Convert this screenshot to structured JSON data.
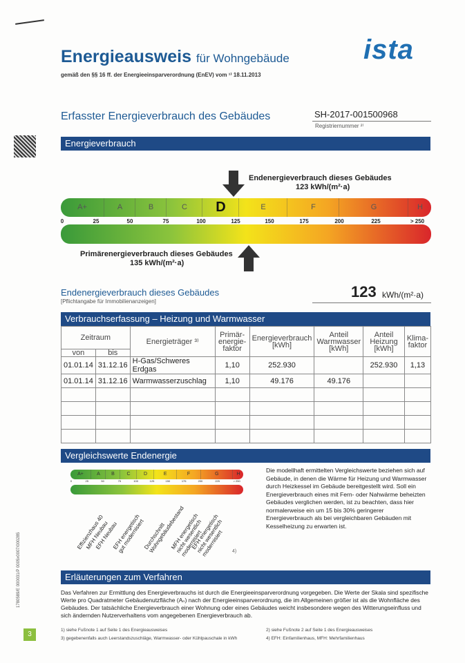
{
  "header": {
    "title": "Energieausweis",
    "title_suffix": "für Wohngebäude",
    "subtitle": "gemäß den §§ 16 ff. der Energieeinsparverordnung (EnEV) vom ¹⁾ 18.11.2013",
    "logo": "ista"
  },
  "section": {
    "title": "Erfasster Energieverbrauch des Gebäudes",
    "registration_number": "SH-2017-001500968",
    "registration_label": "Registriernummer ²⁾"
  },
  "consumption": {
    "bar_title": "Energieverbrauch",
    "final_label": "Endenergieverbrauch dieses Gebäudes",
    "final_value": "123 kWh/(m²·a)",
    "primary_label": "Primärenergieverbrauch dieses Gebäudes",
    "primary_value": "135 kWh/(m²·a)",
    "classes": [
      "A+",
      "A",
      "B",
      "C",
      "D",
      "E",
      "F",
      "G",
      "H"
    ],
    "ticks": [
      "0",
      "25",
      "50",
      "75",
      "100",
      "125",
      "150",
      "175",
      "200",
      "225",
      "> 250"
    ],
    "summary_label": "Endenergieverbrauch dieses Gebäudes",
    "summary_note": "[Pflichtangabe für Immobilienanzeigen]",
    "summary_value": "123",
    "summary_unit": "kWh/(m²·a)"
  },
  "table": {
    "title": "Verbrauchserfassung – Heizung und Warmwasser",
    "headers": {
      "period": "Zeitraum",
      "from": "von",
      "to": "bis",
      "carrier": "Energieträger ³⁾",
      "primary_factor": "Primär-energie-faktor",
      "consumption": "Energieverbrauch [kWh]",
      "hot_water": "Anteil Warmwasser [kWh]",
      "heating": "Anteil Heizung [kWh]",
      "climate_factor": "Klima-faktor"
    },
    "rows": [
      [
        "01.01.14",
        "31.12.16",
        "H-Gas/Schweres Erdgas",
        "1,10",
        "252.930",
        null,
        "252.930",
        "1,13"
      ],
      [
        "01.01.14",
        "31.12.16",
        "Warmwasserzuschlag",
        "1,10",
        "49.176",
        "49.176",
        null,
        null
      ]
    ]
  },
  "comparison": {
    "title": "Vergleichswerte Endenergie",
    "references": [
      "Effizienzhaus 40",
      "MFH Neubau",
      "EFH Neubau",
      "EFH energetisch gut modernisiert",
      "Durchschnitt Wohngebäudebestand",
      "MFH energetisch nicht wesentlich modernisiert",
      "EFH energetisch nicht wesentlich modernisiert"
    ],
    "footnote_mark": "4)",
    "text": "Die modellhaft ermittelten Vergleichswerte beziehen sich auf Gebäude, in denen die Wärme für Heizung und Warmwasser durch Heizkessel im Gebäude bereitgestellt wird. Soll ein Energieverbrauch eines mit Fern- oder Nahwärme beheizten Gebäudes verglichen werden, ist zu beachten, dass hier normalerweise ein um 15 bis 30% geringerer Energieverbrauch als bei vergleichbaren Gebäuden mit Kesselheizung zu erwarten ist."
  },
  "explanation": {
    "title": "Erläuterungen zum Verfahren",
    "text": "Das Verfahren zur Ermittlung des Energieverbrauchs ist durch die Energieeinsparverordnung vorgegeben. Die Werte der Skala sind spezifische Werte pro Quadratmeter Gebäudenutzfläche (Aₙ) nach der Energieeinsparverordnung, die im Allgemeinen größer ist als die Wohnfläche des Gebäudes. Der tatsächliche Energieverbrauch einer Wohnung oder eines Gebäudes weicht insbesondere wegen des Witterungseinfluss und sich ändernden Nutzerverhaltens vom angegebenen Energieverbrauch ab."
  },
  "footnotes": [
    "1) siehe Fußnote 1 auf Seite 1 des Energieausweises",
    "2) siehe Fußnote 2 auf Seite 1 des Energieausweises",
    "3) gegebenenfalls auch Leerstandszuschläge, Warmwasser- oder Kühlpauschale in kWh",
    "4) EFH: Einfamilienhaus, MFH: Mehrfamilienhaus"
  ],
  "page_number": "3",
  "side_code": "1780589/E 000031/P 0005x0007/000285"
}
